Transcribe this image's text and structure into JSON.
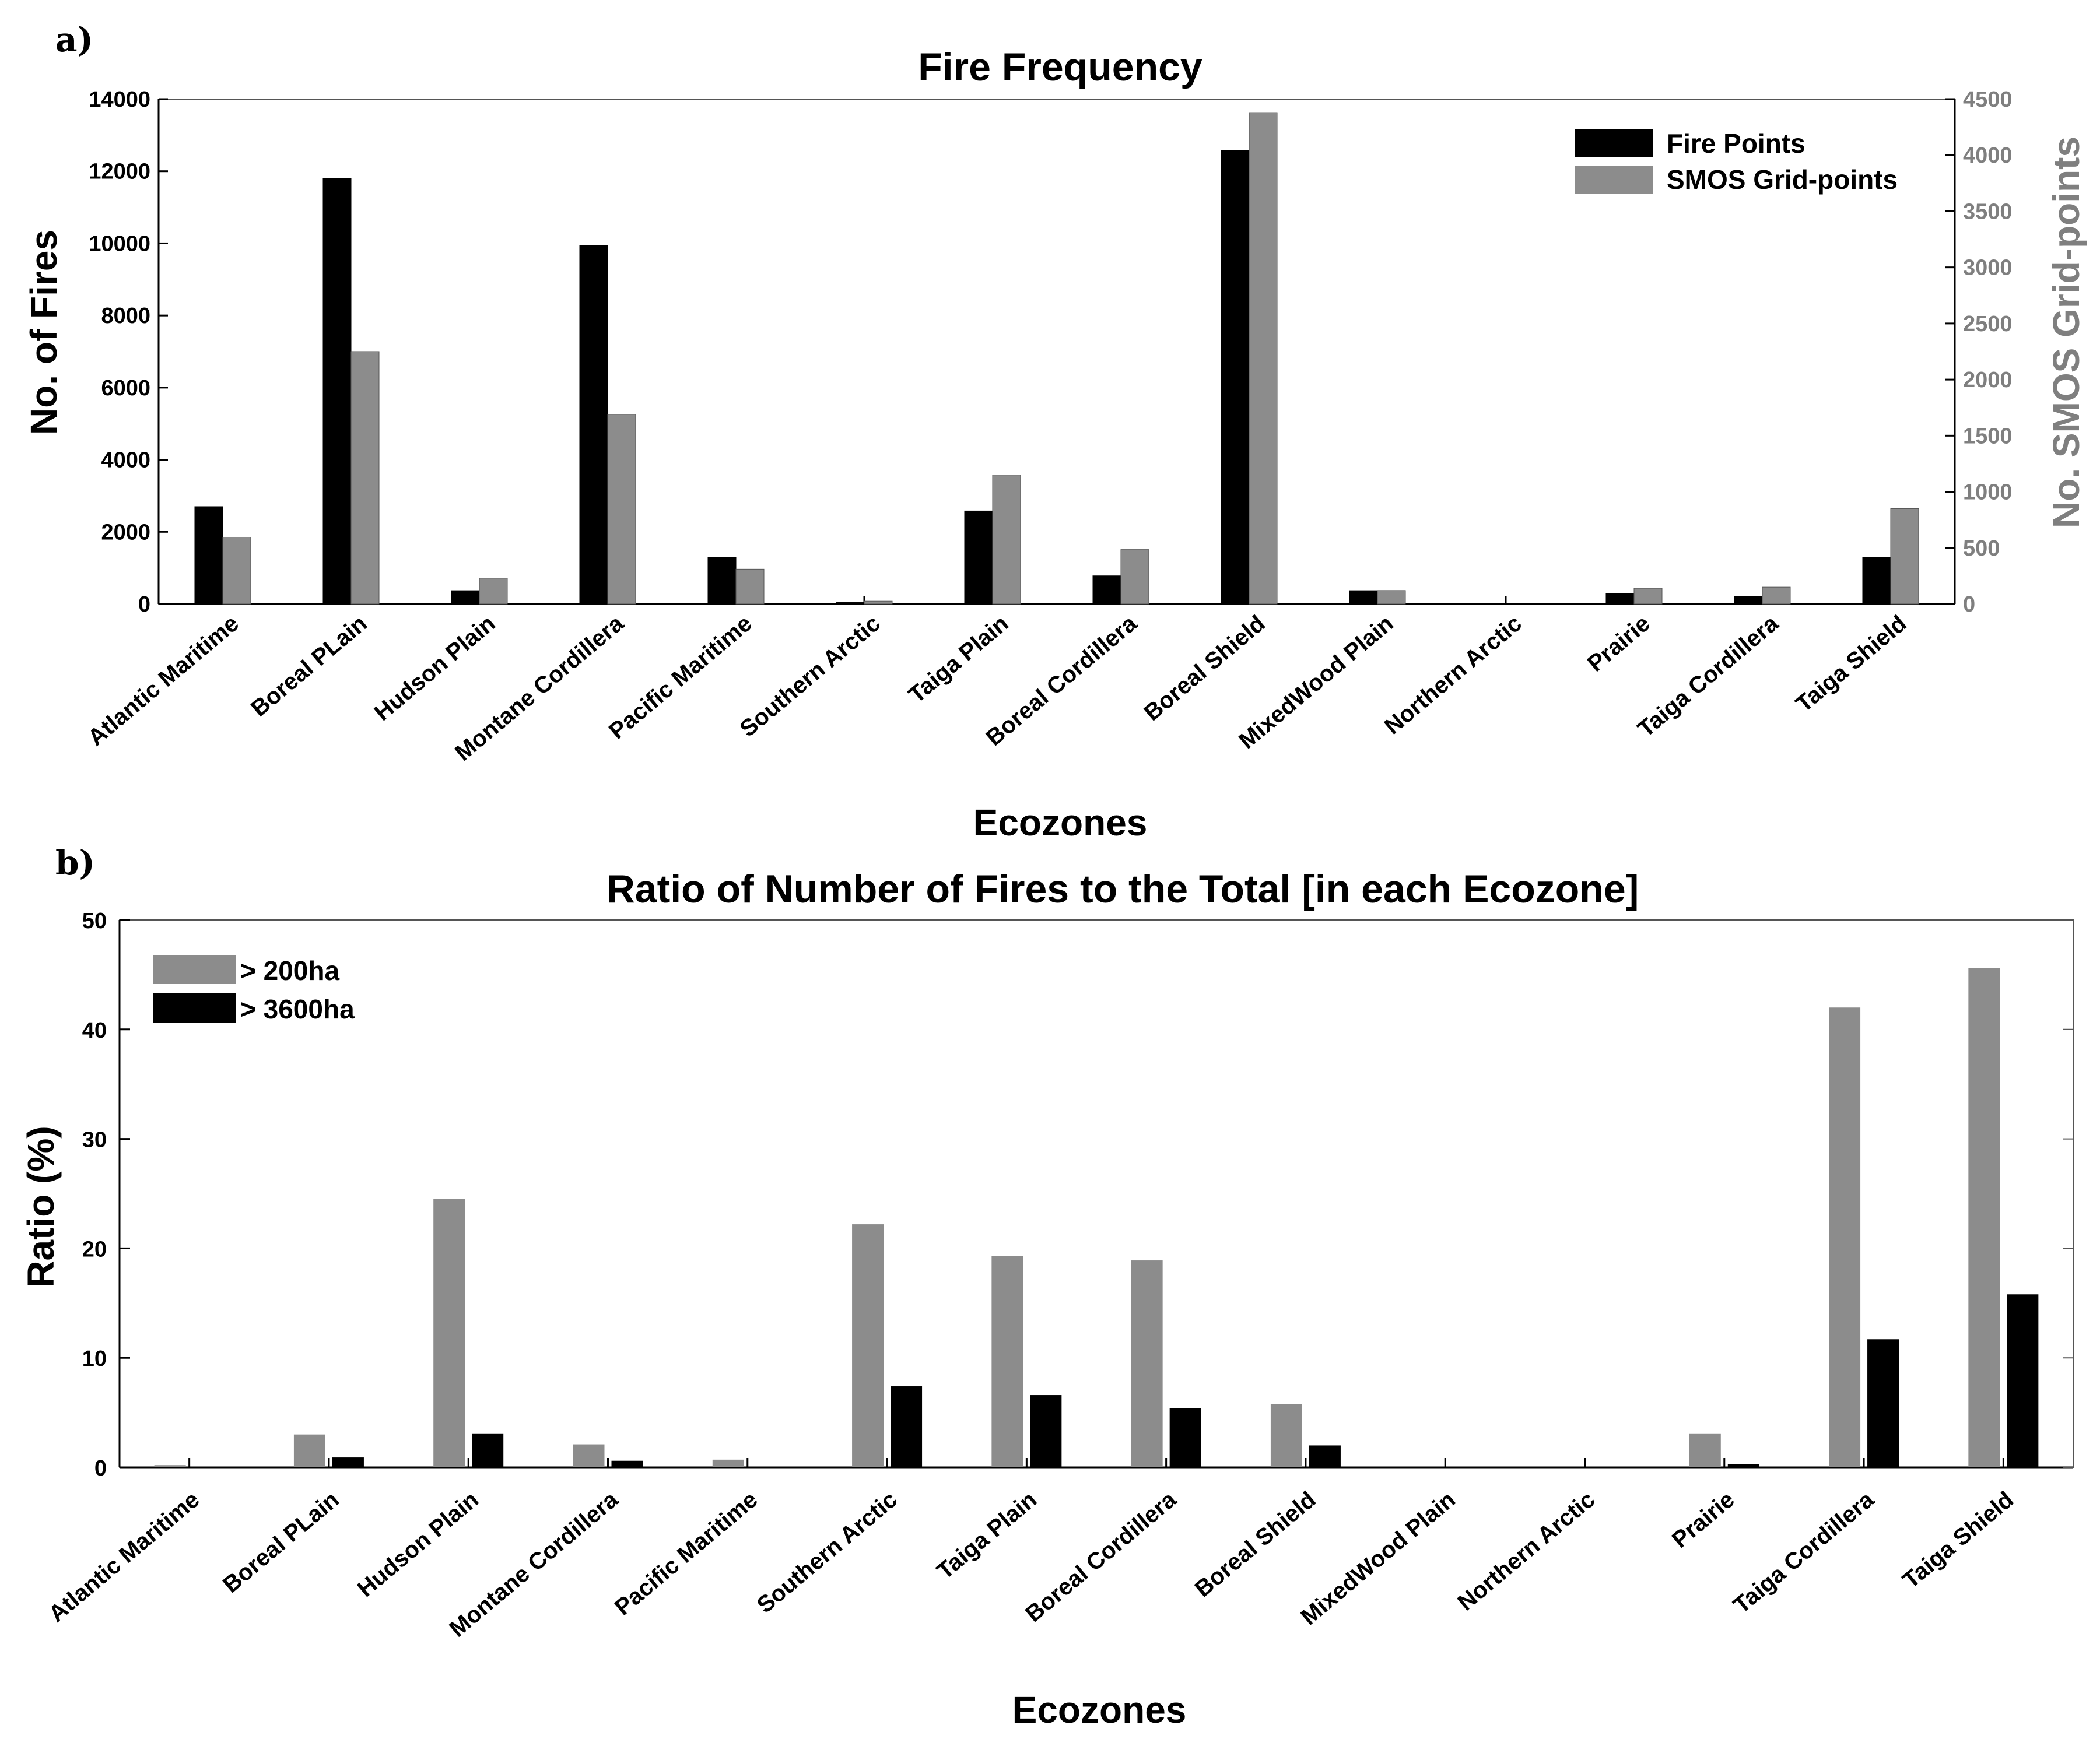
{
  "colors": {
    "black": "#000000",
    "gray": "#8c8c8c",
    "gray_axis": "#7f7f7f"
  },
  "chart_data": [
    {
      "panel": "a)",
      "type": "bar",
      "title": "Fire Frequency",
      "xlabel": "Ecozones",
      "ylabel": "No. of Fires",
      "ylabel_right": "No. SMOS Grid-points",
      "ylim": [
        0,
        14000
      ],
      "yticks": [
        0,
        2000,
        4000,
        6000,
        8000,
        10000,
        12000,
        14000
      ],
      "ylim_right": [
        0,
        4500
      ],
      "yticks_right": [
        0,
        500,
        1000,
        1500,
        2000,
        2500,
        3000,
        3500,
        4000,
        4500
      ],
      "legend_position": "top-right",
      "categories": [
        "Atlantic Maritime",
        "Boreal PLain",
        "Hudson Plain",
        "Montane Cordillera",
        "Pacific Maritime",
        "Southern Arctic",
        "Taiga Plain",
        "Boreal Cordillera",
        "Boreal Shield",
        "MixedWood Plain",
        "Northern Arctic",
        "Prairie",
        "Taiga Cordillera",
        "Taiga Shield"
      ],
      "series": [
        {
          "name": "Fire Points",
          "axis": "left",
          "color": "#000000",
          "values": [
            2700,
            11800,
            370,
            9950,
            1300,
            40,
            2580,
            780,
            12580,
            370,
            0,
            290,
            210,
            1300
          ]
        },
        {
          "name": "SMOS Grid-points",
          "axis": "right",
          "color": "#8c8c8c",
          "values": [
            595,
            2250,
            230,
            1690,
            310,
            25,
            1150,
            485,
            4380,
            120,
            0,
            140,
            150,
            850
          ]
        }
      ]
    },
    {
      "panel": "b)",
      "type": "bar",
      "title": "Ratio of Number of Fires to the Total [in each Ecozone]",
      "xlabel": "Ecozones",
      "ylabel": "Ratio (%)",
      "ylim": [
        0,
        50
      ],
      "yticks": [
        0,
        10,
        20,
        30,
        40,
        50
      ],
      "legend_position": "top-left",
      "categories": [
        "Atlantic Maritime",
        "Boreal PLain",
        "Hudson Plain",
        "Montane Cordillera",
        "Pacific Maritime",
        "Southern Arctic",
        "Taiga Plain",
        "Boreal Cordillera",
        "Boreal Shield",
        "MixedWood Plain",
        "Northern Arctic",
        "Prairie",
        "Taiga Cordillera",
        "Taiga Shield"
      ],
      "series": [
        {
          "name": "> 200ha",
          "color": "#8c8c8c",
          "values": [
            0.2,
            3.0,
            24.5,
            2.1,
            0.7,
            22.2,
            19.3,
            18.9,
            5.8,
            0,
            0,
            3.1,
            42.0,
            45.6
          ]
        },
        {
          "name": "> 3600ha",
          "color": "#000000",
          "values": [
            0,
            0.9,
            3.1,
            0.6,
            0,
            7.4,
            6.6,
            5.4,
            2.0,
            0,
            0,
            0.3,
            11.7,
            15.8
          ]
        }
      ]
    }
  ]
}
